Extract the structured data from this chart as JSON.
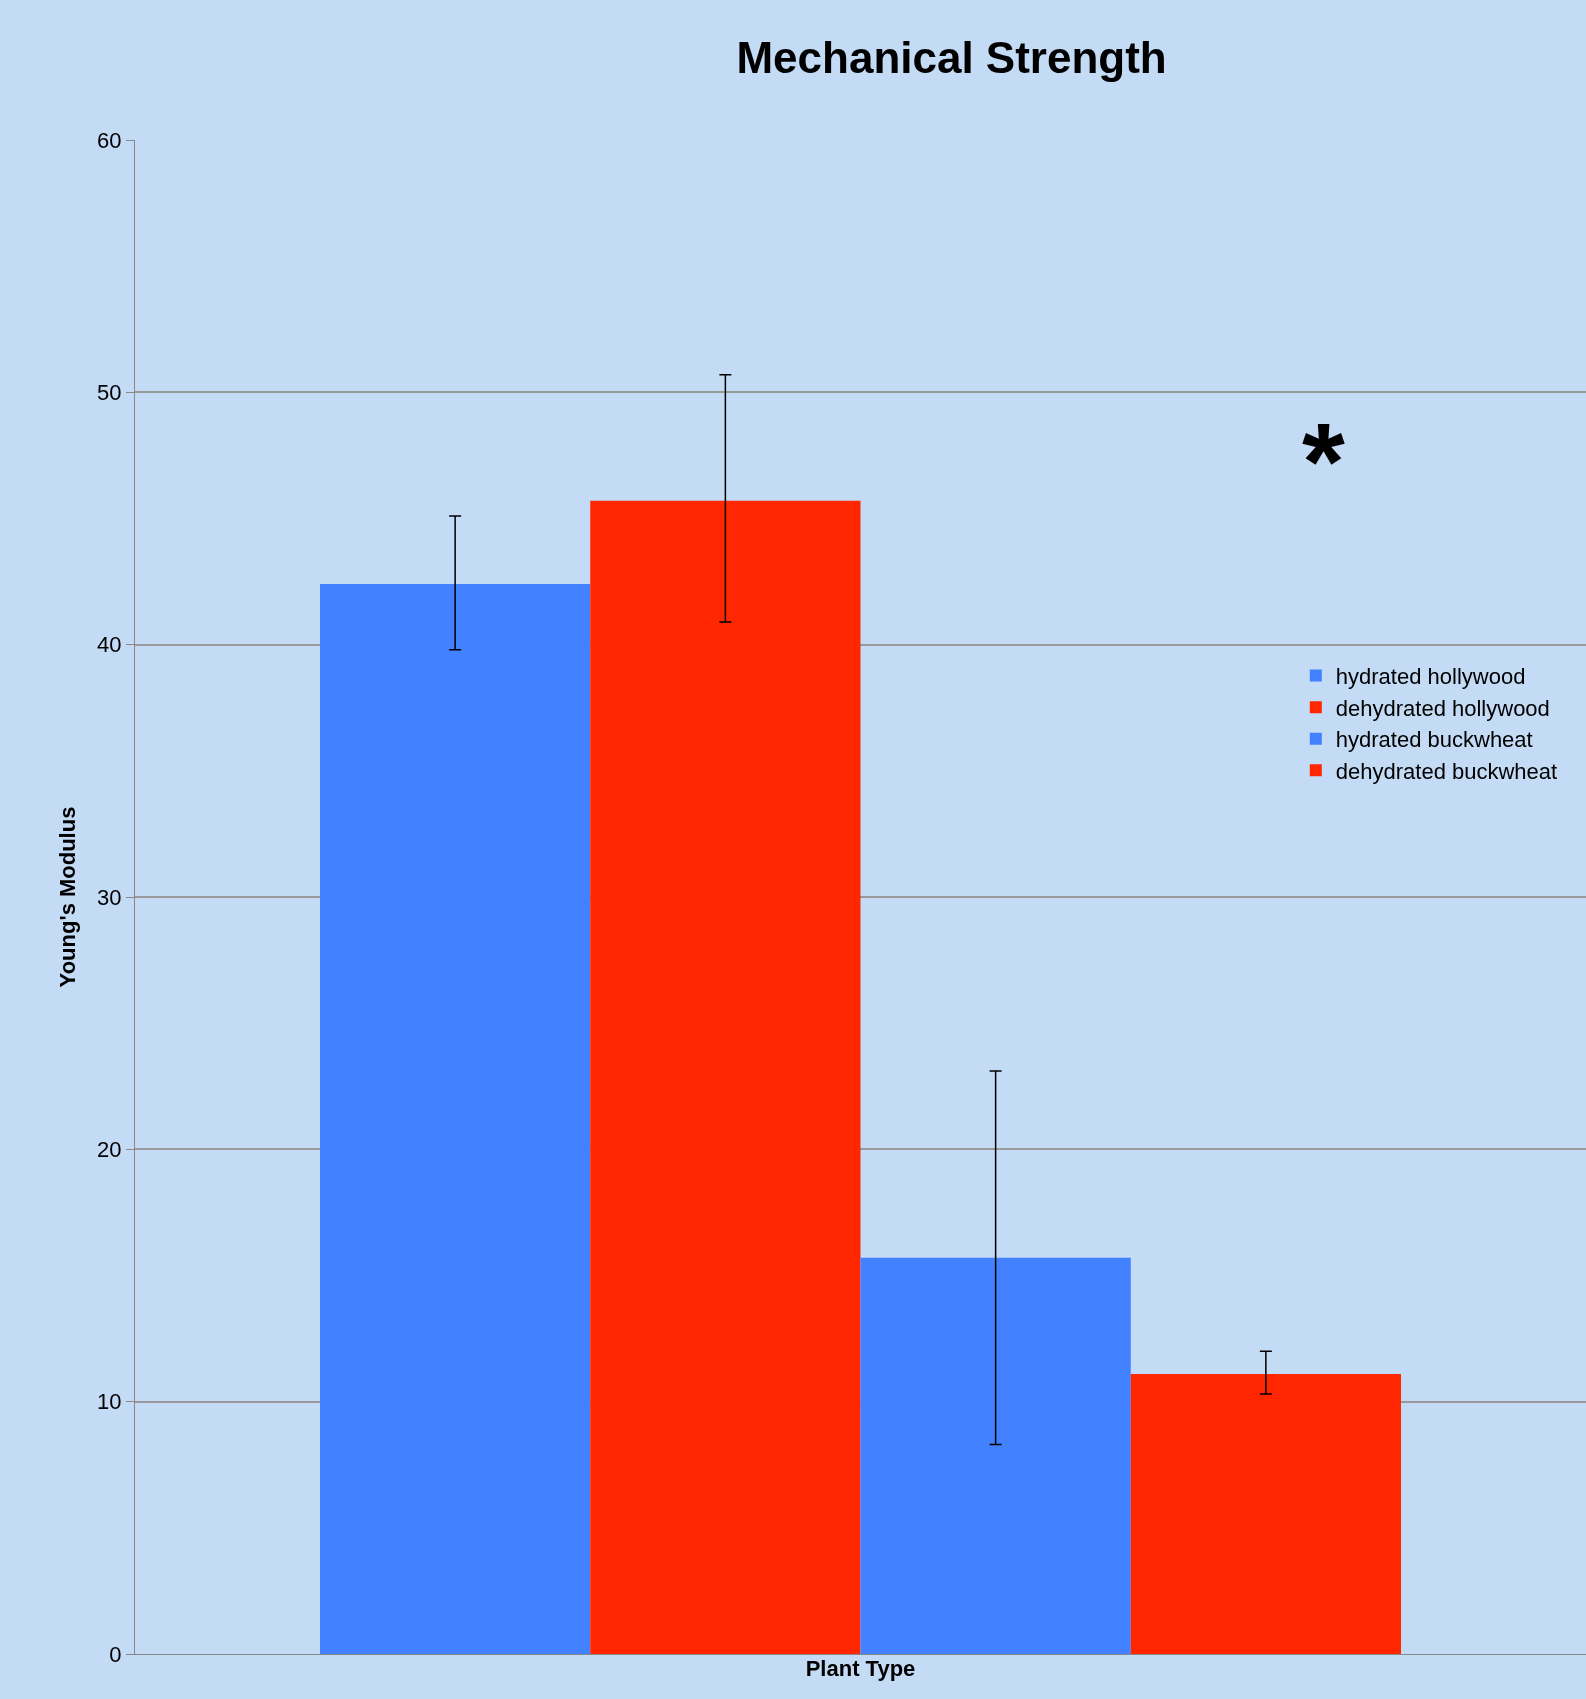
{
  "chart_data": {
    "type": "bar",
    "title": "Mechanical Strength",
    "xlabel": "Plant Type",
    "ylabel": "Young's Modulus",
    "categories": [
      null
    ],
    "series": [
      {
        "name": "hydrated hollywood",
        "color": "#4281ff",
        "values": [
          42.4
        ],
        "errors": [
          [
            39.8,
            45.1
          ]
        ]
      },
      {
        "name": "dehydrated hollywood",
        "color": "#ff2600",
        "values": [
          45.7
        ],
        "errors": [
          [
            40.9,
            50.7
          ]
        ]
      },
      {
        "name": "hydrated buckwheat",
        "color": "#4281ff",
        "values": [
          15.7
        ],
        "errors": [
          [
            8.3,
            23.1
          ]
        ]
      },
      {
        "name": "dehydrated buckwheat",
        "color": "#ff2600",
        "values": [
          11.1
        ],
        "errors": [
          [
            10.3,
            12.0
          ]
        ]
      }
    ],
    "annotations": [
      "*"
    ],
    "ylim": [
      0,
      60
    ],
    "yticks": [
      0,
      10,
      20,
      30,
      40,
      50,
      60
    ],
    "grid": "y",
    "legend": "right"
  }
}
